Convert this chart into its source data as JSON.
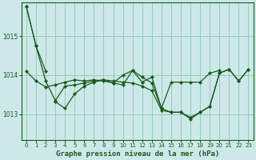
{
  "title": "Graphe pression niveau de la mer (hPa)",
  "background_color": "#cce8e8",
  "grid_color": "#99ccbb",
  "line_color": "#1a5c1a",
  "marker_color": "#1a5c1a",
  "xlim": [
    -0.5,
    23.5
  ],
  "ylim": [
    1012.35,
    1015.85
  ],
  "yticks": [
    1013,
    1014,
    1015
  ],
  "xticks": [
    0,
    1,
    2,
    3,
    4,
    5,
    6,
    7,
    8,
    9,
    10,
    11,
    12,
    13,
    14,
    15,
    16,
    17,
    18,
    19,
    20,
    21,
    22,
    23
  ],
  "series": [
    [
      1015.75,
      1014.75,
      1014.1,
      null,
      null,
      null,
      null,
      null,
      null,
      null,
      null,
      null,
      null,
      null,
      null,
      null,
      null,
      null,
      null,
      null,
      null,
      null,
      null,
      null
    ],
    [
      1014.1,
      1013.85,
      1013.7,
      1013.75,
      1013.82,
      1013.88,
      1013.85,
      1013.88,
      1013.85,
      1013.8,
      1014.0,
      1014.12,
      1013.82,
      1013.95,
      1013.15,
      1013.82,
      1013.82,
      1013.82,
      1013.82,
      1014.05,
      1014.12,
      null,
      null,
      null
    ],
    [
      null,
      null,
      null,
      1013.32,
      1013.15,
      1013.52,
      1013.72,
      1013.82,
      1013.88,
      1013.8,
      1013.75,
      1014.12,
      1013.95,
      1013.8,
      1013.15,
      1013.05,
      1013.05,
      1012.88,
      1013.05,
      1013.2,
      1014.05,
      1014.15,
      1013.85,
      1014.15
    ],
    [
      1015.75,
      1014.75,
      1013.85,
      1013.35,
      1013.72,
      1013.75,
      1013.8,
      1013.85,
      1013.88,
      1013.85,
      1013.82,
      1013.8,
      1013.72,
      1013.6,
      1013.1,
      1013.05,
      1013.05,
      1012.92,
      1013.05,
      1013.2,
      1014.05,
      1014.15,
      1013.85,
      1014.15
    ]
  ]
}
